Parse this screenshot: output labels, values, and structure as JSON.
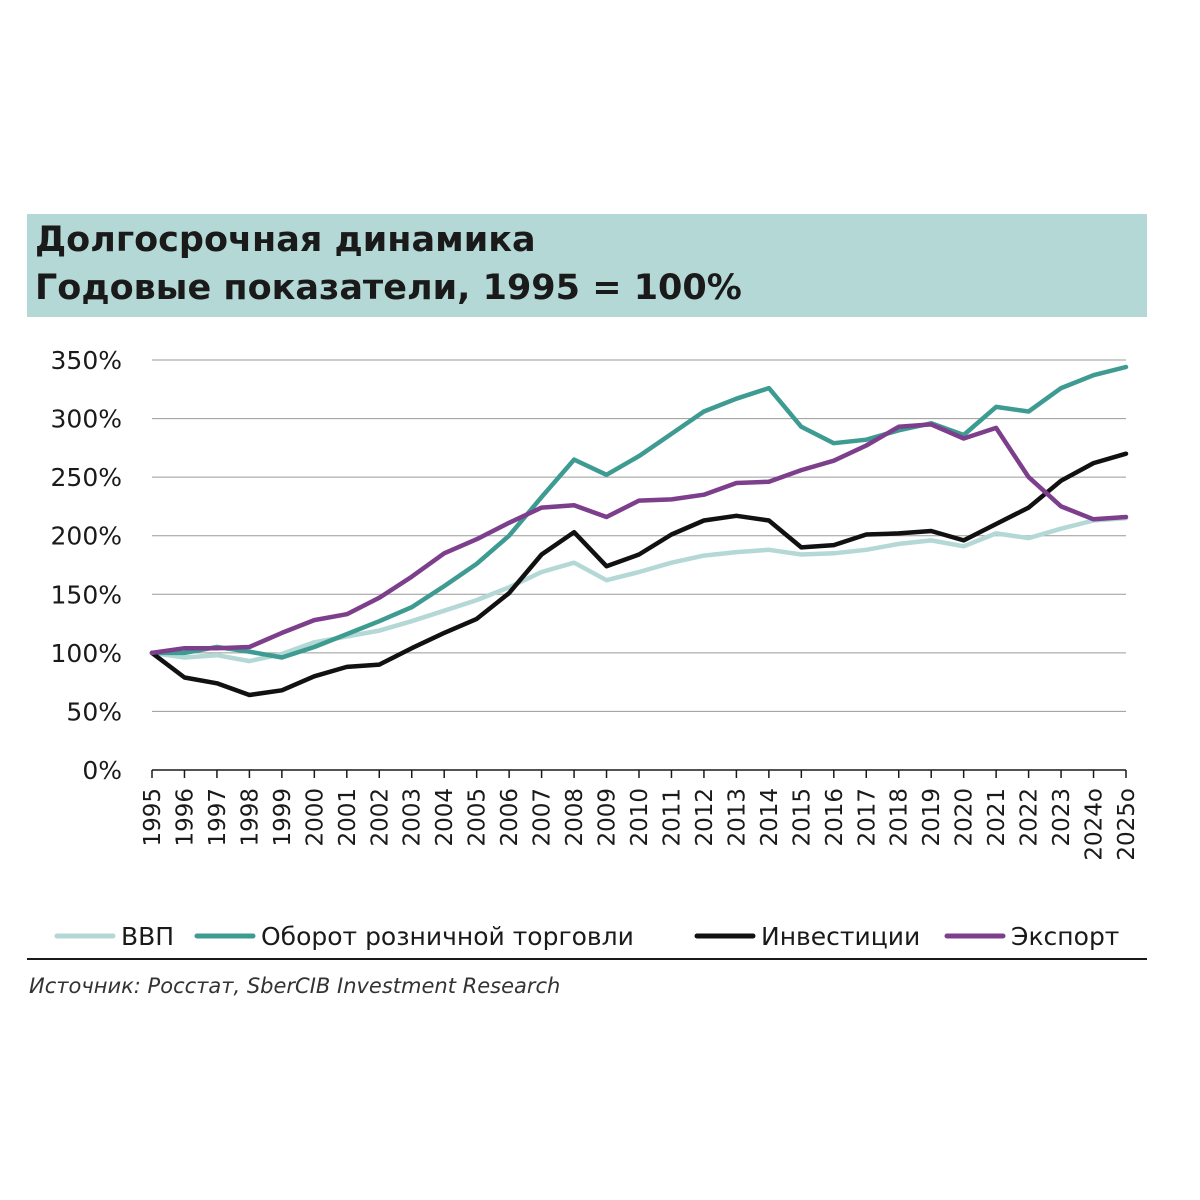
{
  "chart_data": {
    "type": "line",
    "title": "Долгосрочная динамика",
    "subtitle": "Годовые показатели, 1995 = 100%",
    "xlabel": "",
    "ylabel": "",
    "ylim": [
      0,
      350
    ],
    "yticks": [
      "0%",
      "50%",
      "100%",
      "150%",
      "200%",
      "250%",
      "300%",
      "350%"
    ],
    "ytick_values": [
      0,
      50,
      100,
      150,
      200,
      250,
      300,
      350
    ],
    "grid": true,
    "legend_position": "bottom",
    "categories": [
      "1995",
      "1996",
      "1997",
      "1998",
      "1999",
      "2000",
      "2001",
      "2002",
      "2003",
      "2004",
      "2005",
      "2006",
      "2007",
      "2008",
      "2009",
      "2010",
      "2011",
      "2012",
      "2013",
      "2014",
      "2015",
      "2016",
      "2017",
      "2018",
      "2019",
      "2020",
      "2021",
      "2022",
      "2023",
      "2024о",
      "2025о"
    ],
    "series": [
      {
        "name": "ВВП",
        "color": "#b3d8d5",
        "values": [
          100,
          96,
          98,
          93,
          99,
          109,
          114,
          119,
          127,
          136,
          145,
          156,
          169,
          177,
          162,
          169,
          177,
          183,
          186,
          188,
          184,
          185,
          188,
          193,
          196,
          191,
          202,
          198,
          206,
          213,
          215
        ]
      },
      {
        "name": "Оборот розничной торговли",
        "color": "#3e9b91",
        "values": [
          100,
          100,
          105,
          101,
          96,
          105,
          116,
          127,
          139,
          157,
          176,
          200,
          233,
          265,
          252,
          268,
          287,
          306,
          317,
          326,
          293,
          279,
          282,
          290,
          296,
          286,
          310,
          306,
          326,
          337,
          344
        ]
      },
      {
        "name": "Инвестиции",
        "color": "#111111",
        "values": [
          100,
          79,
          74,
          64,
          68,
          80,
          88,
          90,
          104,
          117,
          129,
          151,
          184,
          203,
          174,
          184,
          201,
          213,
          217,
          213,
          190,
          192,
          201,
          202,
          204,
          196,
          210,
          224,
          247,
          262,
          270
        ]
      },
      {
        "name": "Экспорт",
        "color": "#7d3f8c",
        "values": [
          100,
          104,
          104,
          105,
          117,
          128,
          133,
          147,
          165,
          185,
          197,
          211,
          224,
          226,
          216,
          230,
          231,
          235,
          245,
          246,
          256,
          264,
          277,
          293,
          295,
          283,
          292,
          250,
          225,
          214,
          216
        ]
      }
    ]
  },
  "source": {
    "text": "Источник: Росстат, SberCIB Investment Research"
  }
}
